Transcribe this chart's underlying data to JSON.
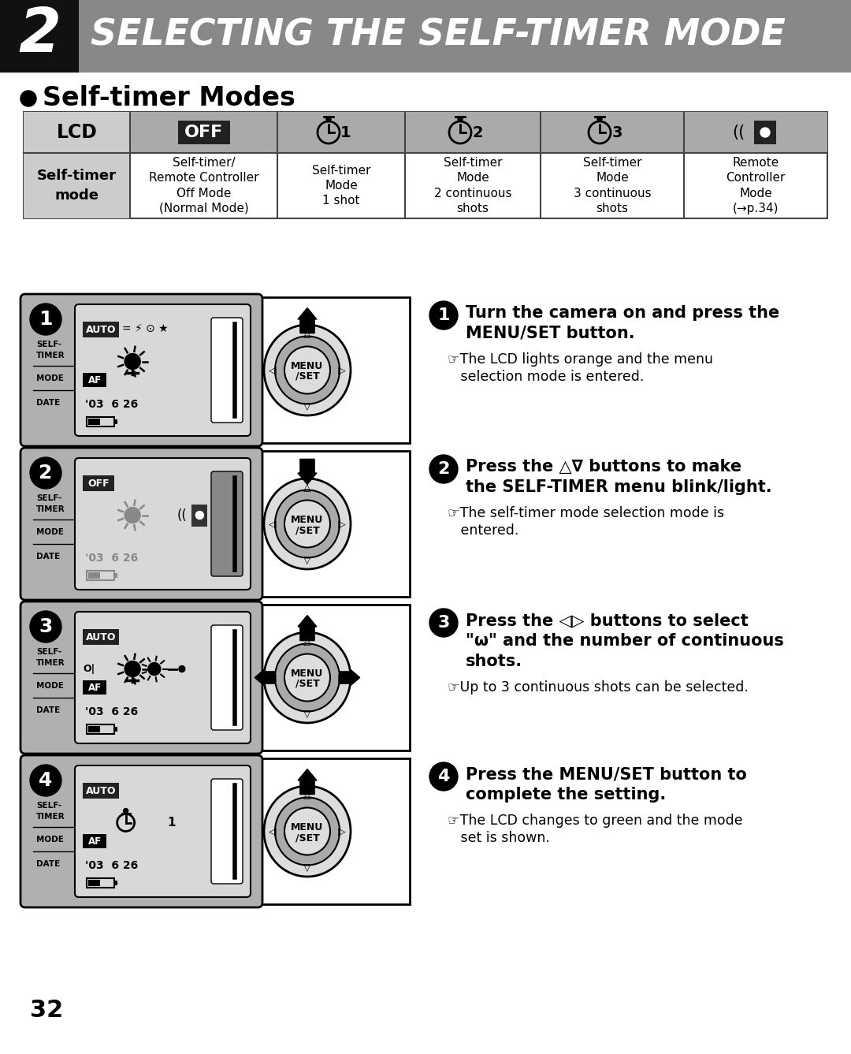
{
  "title_number": "2",
  "title_text": "SELECTING THE SELF-TIMER MODE",
  "section_title": "Self-timer Modes",
  "bg_color": "#ffffff",
  "page_number": "32",
  "table_col1_label": "Self-timer\nmode",
  "table_data": [
    "Self-timer/\nRemote Controller\nOff Mode\n(Normal Mode)",
    "Self-timer\nMode\n1 shot",
    "Self-timer\nMode\n2 continuous\nshots",
    "Self-timer\nMode\n3 continuous\nshots",
    "Remote\nController\nMode\n(→p.34)"
  ],
  "step1_bold1": "Turn the camera on and press the",
  "step1_bold2": "MENU/SET button.",
  "step1_note": "☞The LCD lights orange and the menu",
  "step1_note2": "   selection mode is entered.",
  "step2_bold1": "Press the △∇ buttons to make",
  "step2_bold2": "the SELF-TIMER menu blink/light.",
  "step2_note": "☞The self-timer mode selection mode is",
  "step2_note2": "   entered.",
  "step3_bold1": "Press the ◁▷ buttons to select",
  "step3_bold2": "\"ω\" and the number of continuous",
  "step3_bold3": "shots.",
  "step3_note": "☞Up to 3 continuous shots can be selected.",
  "step4_bold1": "Press the MENU/SET button to",
  "step4_bold2": "complete the setting.",
  "step4_note": "☞The LCD changes to green and the mode",
  "step4_note2": "   set is shown."
}
